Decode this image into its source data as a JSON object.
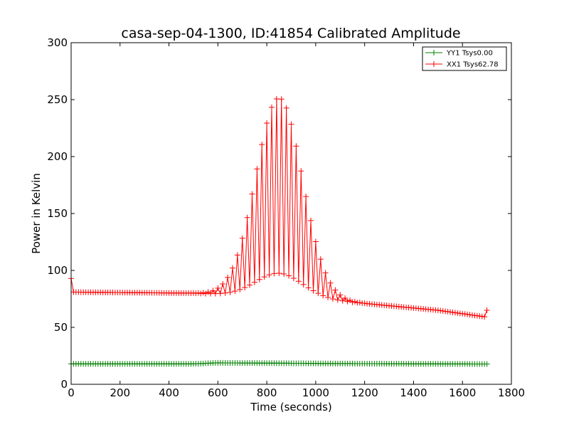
{
  "chart_data": {
    "type": "line",
    "title": "casa-sep-04-1300, ID:41854 Calibrated Amplitude",
    "xlabel": "Time (seconds)",
    "ylabel": "Power in Kelvin",
    "xlim": [
      0,
      1800
    ],
    "ylim": [
      0,
      300
    ],
    "xticks": [
      0,
      200,
      400,
      600,
      800,
      1000,
      1200,
      1400,
      1600,
      1800
    ],
    "yticks": [
      0,
      50,
      100,
      150,
      200,
      250,
      300
    ],
    "grid": false,
    "legend_position": "top-right",
    "marker": "plus",
    "sample_interval": 10,
    "x_end": 1700,
    "series": [
      {
        "name": "YY1 Tsys0.00",
        "color": "#008000",
        "baseline": [
          [
            0,
            18
          ],
          [
            500,
            18
          ],
          [
            600,
            18.8
          ],
          [
            800,
            18.6
          ],
          [
            1100,
            18.2
          ],
          [
            1700,
            17.8
          ]
        ],
        "peak": null
      },
      {
        "name": "XX1 Tsys62.78",
        "color": "#ff0000",
        "baseline": [
          [
            0,
            81
          ],
          [
            500,
            80
          ],
          [
            600,
            79
          ],
          [
            800,
            77
          ],
          [
            1000,
            75
          ],
          [
            1100,
            73
          ],
          [
            1300,
            69
          ],
          [
            1500,
            65
          ],
          [
            1700,
            59
          ]
        ],
        "peak": {
          "center": 850,
          "amplitude": 175,
          "width": 95
        },
        "endpoints": [
          [
            0,
            93
          ],
          [
            1700,
            65
          ]
        ]
      }
    ]
  }
}
